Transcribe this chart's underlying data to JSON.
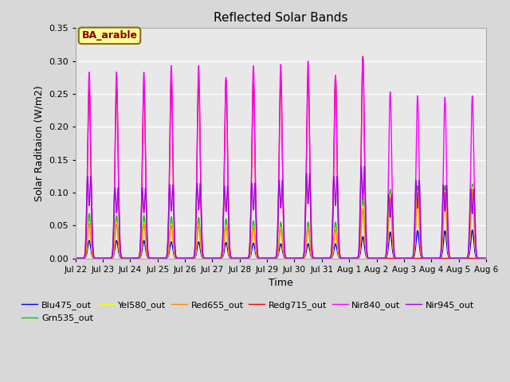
{
  "title": "Reflected Solar Bands",
  "xlabel": "Time",
  "ylabel": "Solar Raditaion (W/m2)",
  "ylim": [
    0.0,
    0.35
  ],
  "yticks": [
    0.0,
    0.05,
    0.1,
    0.15,
    0.2,
    0.25,
    0.3,
    0.35
  ],
  "fig_bg_color": "#d8d8d8",
  "plot_bg_color": "#e8e8e8",
  "annotation_text": "BA_arable",
  "annotation_bg": "#ffff99",
  "annotation_border": "#8b6914",
  "annotation_text_color": "#8b0000",
  "series": [
    {
      "name": "Blu475_out",
      "color": "#0000ee"
    },
    {
      "name": "Grn535_out",
      "color": "#00cc00"
    },
    {
      "name": "Yel580_out",
      "color": "#ffff00"
    },
    {
      "name": "Red655_out",
      "color": "#ff8800"
    },
    {
      "name": "Redg715_out",
      "color": "#ee0000"
    },
    {
      "name": "Nir840_out",
      "color": "#ff00ff"
    },
    {
      "name": "Nir945_out",
      "color": "#aa00dd"
    }
  ],
  "day_labels": [
    "Jul 22",
    "Jul 23",
    "Jul 24",
    "Jul 25",
    "Jul 26",
    "Jul 27",
    "Jul 28",
    "Jul 29",
    "Jul 30",
    "Jul 31",
    "Aug 1",
    "Aug 2",
    "Aug 3",
    "Aug 4",
    "Aug 5",
    "Aug 6"
  ],
  "linewidth": 1.0,
  "peaks_nir840": [
    0.283,
    0.283,
    0.283,
    0.293,
    0.293,
    0.275,
    0.293,
    0.295,
    0.3,
    0.278,
    0.305,
    0.253,
    0.247,
    0.245,
    0.247,
    0.247
  ],
  "peaks_redg715": [
    0.26,
    0.262,
    0.262,
    0.274,
    0.274,
    0.272,
    0.272,
    0.275,
    0.278,
    0.278,
    0.307,
    0.0,
    0.0,
    0.0,
    0.0,
    0.0
  ],
  "peaks_nir945": [
    0.145,
    0.125,
    0.125,
    0.13,
    0.133,
    0.128,
    0.133,
    0.138,
    0.15,
    0.145,
    0.163,
    0.113,
    0.138,
    0.13,
    0.123,
    0.123
  ],
  "peaks_grn535": [
    0.068,
    0.065,
    0.065,
    0.063,
    0.062,
    0.06,
    0.057,
    0.055,
    0.055,
    0.055,
    0.093,
    0.105,
    0.11,
    0.11,
    0.113,
    0.113
  ],
  "peaks_yel580": [
    0.055,
    0.054,
    0.054,
    0.052,
    0.051,
    0.05,
    0.048,
    0.047,
    0.047,
    0.045,
    0.08,
    0.097,
    0.103,
    0.103,
    0.108,
    0.108
  ],
  "peaks_red655": [
    0.053,
    0.052,
    0.052,
    0.05,
    0.05,
    0.048,
    0.047,
    0.046,
    0.046,
    0.044,
    0.075,
    0.093,
    0.1,
    0.1,
    0.105,
    0.105
  ],
  "peaks_blu475": [
    0.027,
    0.027,
    0.027,
    0.025,
    0.025,
    0.024,
    0.023,
    0.022,
    0.022,
    0.022,
    0.033,
    0.04,
    0.042,
    0.042,
    0.043,
    0.043
  ]
}
